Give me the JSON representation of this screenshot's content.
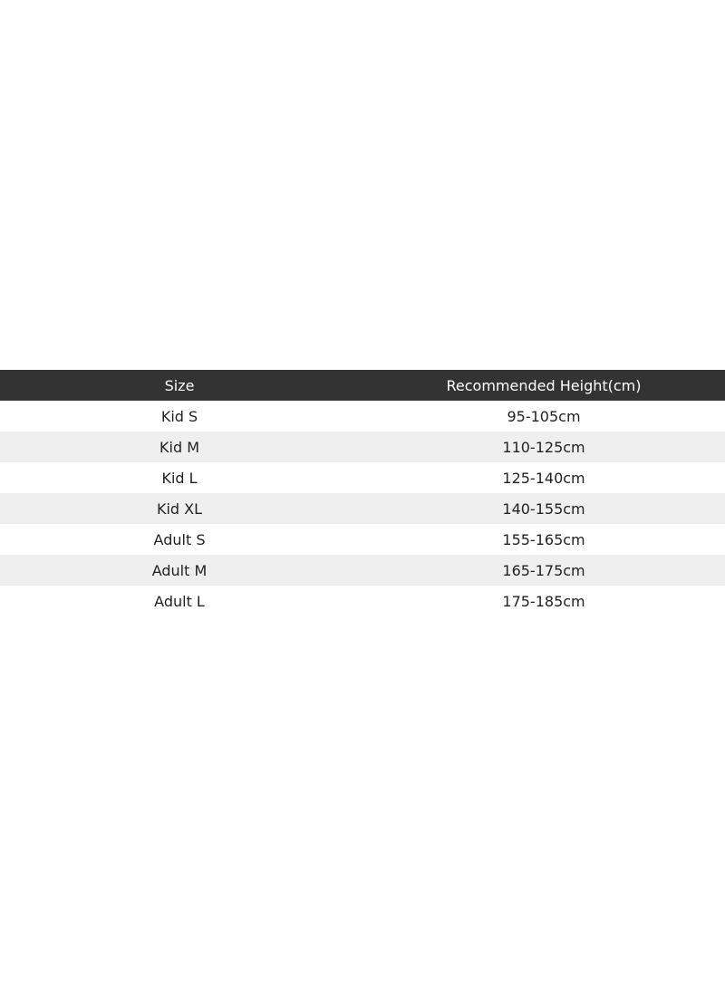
{
  "table": {
    "headers": [
      "Size",
      "Recommended Height(cm)"
    ],
    "rows": [
      [
        "Kid S",
        "95-105cm"
      ],
      [
        "Kid M",
        "110-125cm"
      ],
      [
        "Kid L",
        "125-140cm"
      ],
      [
        "Kid XL",
        "140-155cm"
      ],
      [
        "Adult S",
        "155-165cm"
      ],
      [
        "Adult M",
        "165-175cm"
      ],
      [
        "Adult L",
        "175-185cm"
      ]
    ],
    "colors": {
      "header_bg": "#333333",
      "header_text": "#ffffff",
      "stripe": "#efefef"
    }
  }
}
